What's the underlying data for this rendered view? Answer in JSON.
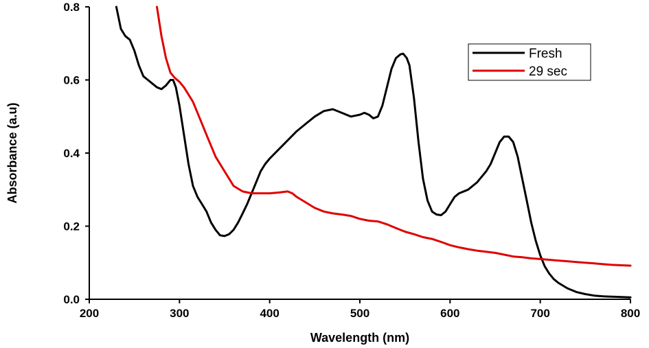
{
  "chart_data": {
    "type": "line",
    "xlabel": "Wavelength (nm)",
    "ylabel": "Absorbance (a.u)",
    "xlim": [
      200,
      800
    ],
    "ylim": [
      0.0,
      0.8
    ],
    "x_ticks": [
      "200",
      "300",
      "400",
      "500",
      "600",
      "700",
      "800"
    ],
    "y_ticks": [
      "0.0",
      "0.2",
      "0.4",
      "0.6",
      "0.8"
    ],
    "grid": false,
    "legend_position": "top-right",
    "series": [
      {
        "name": "Fresh",
        "color": "#000000",
        "x": [
          230,
          235,
          240,
          245,
          250,
          255,
          260,
          265,
          270,
          275,
          280,
          285,
          290,
          293,
          296,
          300,
          305,
          310,
          315,
          320,
          325,
          330,
          335,
          340,
          345,
          350,
          355,
          360,
          365,
          370,
          375,
          380,
          385,
          390,
          395,
          400,
          410,
          420,
          430,
          440,
          450,
          460,
          470,
          480,
          490,
          500,
          505,
          510,
          515,
          520,
          525,
          530,
          535,
          540,
          545,
          548,
          552,
          555,
          560,
          565,
          570,
          575,
          580,
          585,
          590,
          595,
          600,
          605,
          610,
          620,
          630,
          640,
          645,
          650,
          655,
          660,
          665,
          670,
          675,
          680,
          685,
          690,
          695,
          700,
          705,
          710,
          715,
          720,
          730,
          740,
          750,
          760,
          770,
          780,
          790,
          800
        ],
        "y": [
          0.8,
          0.74,
          0.72,
          0.71,
          0.68,
          0.64,
          0.61,
          0.6,
          0.59,
          0.58,
          0.575,
          0.585,
          0.6,
          0.6,
          0.58,
          0.53,
          0.45,
          0.37,
          0.31,
          0.28,
          0.26,
          0.24,
          0.21,
          0.19,
          0.175,
          0.173,
          0.178,
          0.19,
          0.21,
          0.235,
          0.26,
          0.29,
          0.32,
          0.35,
          0.37,
          0.385,
          0.41,
          0.435,
          0.46,
          0.48,
          0.5,
          0.515,
          0.52,
          0.51,
          0.5,
          0.505,
          0.51,
          0.505,
          0.495,
          0.5,
          0.53,
          0.58,
          0.63,
          0.66,
          0.67,
          0.672,
          0.66,
          0.64,
          0.55,
          0.43,
          0.33,
          0.27,
          0.24,
          0.232,
          0.23,
          0.24,
          0.26,
          0.28,
          0.29,
          0.3,
          0.32,
          0.35,
          0.37,
          0.4,
          0.43,
          0.445,
          0.445,
          0.43,
          0.39,
          0.33,
          0.27,
          0.21,
          0.16,
          0.12,
          0.09,
          0.07,
          0.055,
          0.045,
          0.03,
          0.02,
          0.014,
          0.01,
          0.008,
          0.007,
          0.006,
          0.005
        ]
      },
      {
        "name": "29 sec",
        "color": "#e00000",
        "x": [
          275,
          280,
          285,
          290,
          295,
          300,
          305,
          310,
          315,
          320,
          330,
          340,
          350,
          360,
          370,
          380,
          390,
          400,
          410,
          420,
          425,
          430,
          440,
          450,
          460,
          470,
          480,
          490,
          500,
          510,
          520,
          530,
          540,
          550,
          560,
          570,
          580,
          590,
          600,
          610,
          620,
          630,
          640,
          650,
          660,
          670,
          680,
          690,
          700,
          710,
          720,
          730,
          740,
          750,
          760,
          770,
          780,
          790,
          800
        ],
        "y": [
          0.8,
          0.72,
          0.66,
          0.62,
          0.605,
          0.595,
          0.58,
          0.56,
          0.54,
          0.51,
          0.45,
          0.39,
          0.35,
          0.31,
          0.295,
          0.29,
          0.29,
          0.29,
          0.292,
          0.295,
          0.29,
          0.28,
          0.265,
          0.25,
          0.24,
          0.235,
          0.232,
          0.228,
          0.22,
          0.215,
          0.213,
          0.205,
          0.195,
          0.185,
          0.178,
          0.17,
          0.165,
          0.157,
          0.148,
          0.142,
          0.137,
          0.133,
          0.13,
          0.127,
          0.122,
          0.117,
          0.115,
          0.112,
          0.11,
          0.108,
          0.106,
          0.104,
          0.102,
          0.1,
          0.098,
          0.096,
          0.094,
          0.093,
          0.092
        ]
      }
    ]
  }
}
